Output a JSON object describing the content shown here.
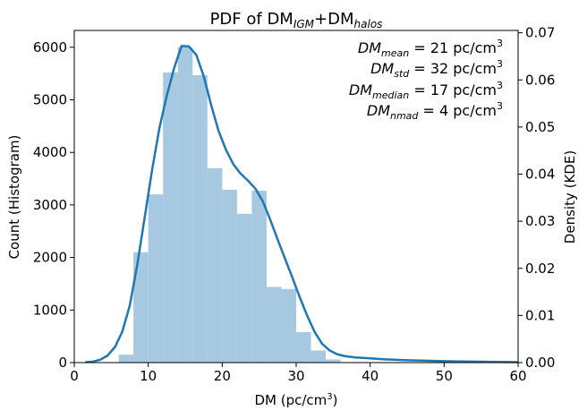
{
  "chart_data": {
    "type": "bar",
    "title": {
      "prefix": "PDF of DM",
      "sub1": "IGM",
      "mid": "+DM",
      "sub2": "halos"
    },
    "xlabel": {
      "main": "DM (pc/cm",
      "sup": "3",
      "end": ")"
    },
    "ylabel_left": "Count (Histogram)",
    "ylabel_right": "Density (KDE)",
    "xlim": [
      0,
      60
    ],
    "ylim_left": [
      0,
      6320
    ],
    "ylim_right": [
      0,
      0.0705
    ],
    "x_ticks": [
      "0",
      "10",
      "20",
      "30",
      "40",
      "50",
      "60"
    ],
    "y_ticks_left": [
      "0",
      "1000",
      "2000",
      "3000",
      "4000",
      "5000",
      "6000"
    ],
    "y_ticks_right": [
      "0.00",
      "0.01",
      "0.02",
      "0.03",
      "0.04",
      "0.05",
      "0.06",
      "0.07"
    ],
    "grid": false,
    "colors": {
      "histogram": "#a6c8e0",
      "kde": "#1f77b4"
    },
    "histogram": {
      "name": "Count (Histogram)",
      "bin_width": 2,
      "bin_starts": [
        4,
        6,
        8,
        10,
        12,
        14,
        16,
        18,
        20,
        22,
        24,
        26,
        28,
        30,
        32,
        34
      ],
      "values": [
        0,
        150,
        2100,
        3200,
        5520,
        6000,
        5470,
        3700,
        3290,
        2830,
        3270,
        1440,
        1400,
        580,
        230,
        60
      ]
    },
    "kde": {
      "name": "Density (KDE)",
      "x": [
        1.5,
        2.5,
        3.5,
        4.5,
        5.5,
        6.5,
        7.5,
        8.5,
        9.5,
        10.5,
        11.5,
        12.5,
        13.5,
        14.5,
        15.5,
        16.5,
        17.5,
        18.5,
        19.5,
        20.5,
        21.5,
        22.5,
        23.5,
        24.5,
        25.5,
        26.5,
        27.5,
        28.5,
        29.5,
        30.5,
        31.5,
        32.5,
        33.5,
        34.5,
        35.5,
        36.5,
        38,
        40,
        42,
        45,
        50,
        55,
        60
      ],
      "y": [
        0.0001,
        0.0002,
        0.0006,
        0.0015,
        0.0033,
        0.0066,
        0.0121,
        0.0206,
        0.0306,
        0.0407,
        0.0497,
        0.0566,
        0.0625,
        0.0672,
        0.0671,
        0.0653,
        0.0608,
        0.0547,
        0.0492,
        0.0452,
        0.0421,
        0.0401,
        0.0386,
        0.0369,
        0.0342,
        0.0303,
        0.0261,
        0.022,
        0.018,
        0.0138,
        0.0099,
        0.0065,
        0.004,
        0.0026,
        0.0018,
        0.0014,
        0.0011,
        0.0009,
        0.0007,
        0.0005,
        0.0003,
        0.0002,
        0.0001
      ]
    },
    "annotations": [
      {
        "sym": "DM",
        "sub": "mean",
        "text": " = 21 pc/cm",
        "sup": "3"
      },
      {
        "sym": "DM",
        "sub": "std",
        "text": " = 32 pc/cm",
        "sup": "3"
      },
      {
        "sym": "DM",
        "sub": "median",
        "text": " = 17 pc/cm",
        "sup": "3"
      },
      {
        "sym": "DM",
        "sub": "nmad",
        "text": " = 4 pc/cm",
        "sup": "3"
      }
    ]
  }
}
